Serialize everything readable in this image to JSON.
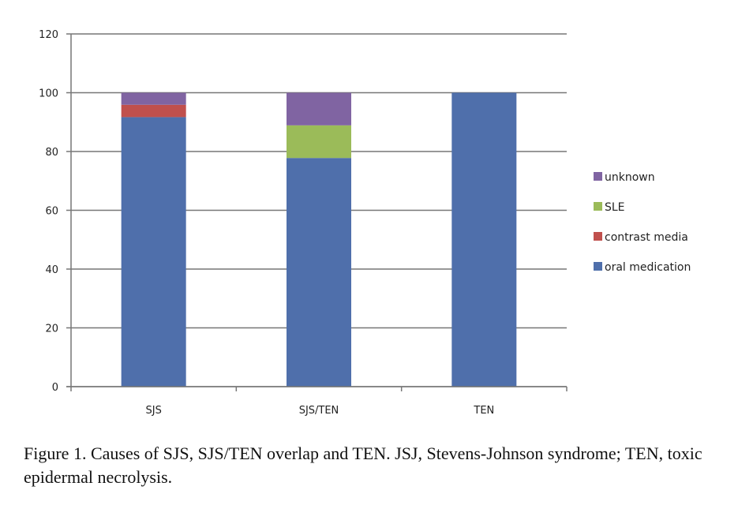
{
  "chart_data": {
    "type": "bar",
    "stacked": true,
    "categories": [
      "SJS",
      "SJS/TEN",
      "TEN"
    ],
    "series": [
      {
        "name": "oral medication",
        "color": "#4F6FAB",
        "values": [
          91.7,
          77.8,
          100
        ]
      },
      {
        "name": "contrast media",
        "color": "#C0504D",
        "values": [
          4.2,
          0,
          0
        ]
      },
      {
        "name": "SLE",
        "color": "#9BBB59",
        "values": [
          0,
          11.1,
          0
        ]
      },
      {
        "name": "unknown",
        "color": "#8064A2",
        "values": [
          4.1,
          11.1,
          0
        ]
      }
    ],
    "ylim": [
      0,
      120
    ],
    "yticks": [
      0,
      20,
      40,
      60,
      80,
      100,
      120
    ],
    "grid": true,
    "legend_position": "right",
    "legend_order": [
      "unknown",
      "SLE",
      "contrast media",
      "oral medication"
    ]
  },
  "caption": "Figure 1. Causes of SJS, SJS/TEN overlap and TEN. JSJ, Stevens-Johnson syndrome; TEN, toxic epidermal necrolysis."
}
